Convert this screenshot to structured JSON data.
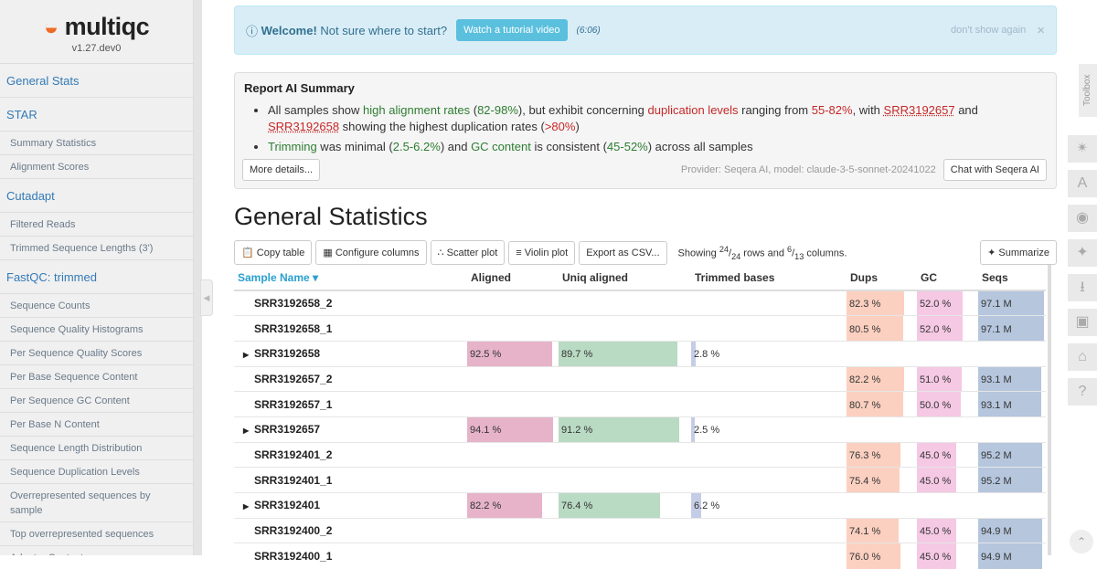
{
  "sidebar": {
    "logo_text": "multiqc",
    "version": "v1.27.dev0",
    "items": [
      {
        "label": "General Stats",
        "level": 1
      },
      {
        "label": "STAR",
        "level": 1
      },
      {
        "label": "Summary Statistics",
        "level": 2
      },
      {
        "label": "Alignment Scores",
        "level": 2
      },
      {
        "label": "Cutadapt",
        "level": 1
      },
      {
        "label": "Filtered Reads",
        "level": 2
      },
      {
        "label": "Trimmed Sequence Lengths (3')",
        "level": 2
      },
      {
        "label": "FastQC: trimmed",
        "level": 1
      },
      {
        "label": "Sequence Counts",
        "level": 2
      },
      {
        "label": "Sequence Quality Histograms",
        "level": 2
      },
      {
        "label": "Per Sequence Quality Scores",
        "level": 2
      },
      {
        "label": "Per Base Sequence Content",
        "level": 2
      },
      {
        "label": "Per Sequence GC Content",
        "level": 2
      },
      {
        "label": "Per Base N Content",
        "level": 2
      },
      {
        "label": "Sequence Length Distribution",
        "level": 2
      },
      {
        "label": "Sequence Duplication Levels",
        "level": 2
      },
      {
        "label": "Overrepresented sequences by sample",
        "level": 2
      },
      {
        "label": "Top overrepresented sequences",
        "level": 2
      },
      {
        "label": "Adapter Content",
        "level": 2
      }
    ]
  },
  "welcome": {
    "icon": "info-circle-icon",
    "bold": "Welcome!",
    "text": "Not sure where to start?",
    "button": "Watch a tutorial video",
    "duration": "(6:06)",
    "dismiss": "don't show again",
    "close": "×"
  },
  "ai_summary": {
    "title": "Report AI Summary",
    "b1": [
      "All samples show ",
      "high alignment rates",
      " (",
      "82-98%",
      "), but exhibit concerning ",
      "duplication levels",
      " ranging from ",
      "55-82%",
      ", with ",
      "SRR3192657",
      " and ",
      "SRR3192658",
      " showing the highest duplication rates (",
      ">80%",
      ")"
    ],
    "b2": [
      "Trimming",
      " was minimal (",
      "2.5-6.2%",
      ") and ",
      "GC content",
      " is consistent (",
      "45-52%",
      ") across all samples"
    ],
    "more": "More details...",
    "provider": "Provider: Seqera AI, model: claude-3-5-sonnet-20241022",
    "chat": "Chat with Seqera AI"
  },
  "section_title": "General Statistics",
  "toolbar": {
    "copy": "Copy table",
    "configure": "Configure columns",
    "scatter": "Scatter plot",
    "violin": "Violin plot",
    "export": "Export as CSV...",
    "showing_pre": "Showing ",
    "rows_shown": "24",
    "rows_total": "24",
    "mid": " rows and ",
    "cols_shown": "6",
    "cols_total": "13",
    "post": " columns.",
    "summarize": "Summarize"
  },
  "table": {
    "headers": [
      "Sample Name",
      "Aligned",
      "Uniq aligned",
      "Trimmed bases",
      "Dups",
      "GC",
      "Seqs"
    ],
    "colors": {
      "aligned": "#e6b3c8",
      "uniq": "#b9dac3",
      "trimmed": "#c5cde6",
      "dups": "#fbd0c0",
      "gc": "#f5c8e4",
      "seqs": "#b5c6dd"
    },
    "rows": [
      {
        "name": "SRR3192658_2",
        "group": false,
        "aligned": "",
        "uniq": "",
        "trimmed": "",
        "dups": "82.3 %",
        "gc": "52.0 %",
        "seqs": "97.1 M",
        "v": [
          null,
          null,
          null,
          82.3,
          52.0,
          97.1
        ]
      },
      {
        "name": "SRR3192658_1",
        "group": false,
        "aligned": "",
        "uniq": "",
        "trimmed": "",
        "dups": "80.5 %",
        "gc": "52.0 %",
        "seqs": "97.1 M",
        "v": [
          null,
          null,
          null,
          80.5,
          52.0,
          97.1
        ]
      },
      {
        "name": "SRR3192658",
        "group": true,
        "aligned": "92.5 %",
        "uniq": "89.7 %",
        "trimmed": "2.8 %",
        "dups": "",
        "gc": "",
        "seqs": "",
        "v": [
          92.5,
          89.7,
          2.8,
          null,
          null,
          null
        ]
      },
      {
        "name": "SRR3192657_2",
        "group": false,
        "aligned": "",
        "uniq": "",
        "trimmed": "",
        "dups": "82.2 %",
        "gc": "51.0 %",
        "seqs": "93.1 M",
        "v": [
          null,
          null,
          null,
          82.2,
          51.0,
          93.1
        ]
      },
      {
        "name": "SRR3192657_1",
        "group": false,
        "aligned": "",
        "uniq": "",
        "trimmed": "",
        "dups": "80.7 %",
        "gc": "50.0 %",
        "seqs": "93.1 M",
        "v": [
          null,
          null,
          null,
          80.7,
          50.0,
          93.1
        ]
      },
      {
        "name": "SRR3192657",
        "group": true,
        "aligned": "94.1 %",
        "uniq": "91.2 %",
        "trimmed": "2.5 %",
        "dups": "",
        "gc": "",
        "seqs": "",
        "v": [
          94.1,
          91.2,
          2.5,
          null,
          null,
          null
        ]
      },
      {
        "name": "SRR3192401_2",
        "group": false,
        "aligned": "",
        "uniq": "",
        "trimmed": "",
        "dups": "76.3 %",
        "gc": "45.0 %",
        "seqs": "95.2 M",
        "v": [
          null,
          null,
          null,
          76.3,
          45.0,
          95.2
        ]
      },
      {
        "name": "SRR3192401_1",
        "group": false,
        "aligned": "",
        "uniq": "",
        "trimmed": "",
        "dups": "75.4 %",
        "gc": "45.0 %",
        "seqs": "95.2 M",
        "v": [
          null,
          null,
          null,
          75.4,
          45.0,
          95.2
        ]
      },
      {
        "name": "SRR3192401",
        "group": true,
        "aligned": "82.2 %",
        "uniq": "76.4 %",
        "trimmed": "6.2 %",
        "dups": "",
        "gc": "",
        "seqs": "",
        "v": [
          82.2,
          76.4,
          6.2,
          null,
          null,
          null
        ]
      },
      {
        "name": "SRR3192400_2",
        "group": false,
        "aligned": "",
        "uniq": "",
        "trimmed": "",
        "dups": "74.1 %",
        "gc": "45.0 %",
        "seqs": "94.9 M",
        "v": [
          null,
          null,
          null,
          74.1,
          45.0,
          94.9
        ]
      },
      {
        "name": "SRR3192400_1",
        "group": false,
        "aligned": "",
        "uniq": "",
        "trimmed": "",
        "dups": "76.0 %",
        "gc": "45.0 %",
        "seqs": "94.9 M",
        "v": [
          null,
          null,
          null,
          76.0,
          45.0,
          94.9
        ]
      }
    ]
  },
  "toolbox": {
    "label": "Toolbox",
    "icons": [
      "pin-icon",
      "font-icon",
      "eye-slash-icon",
      "sparkle-icon",
      "download-icon",
      "save-icon",
      "graduation-cap-icon",
      "help-icon"
    ]
  }
}
